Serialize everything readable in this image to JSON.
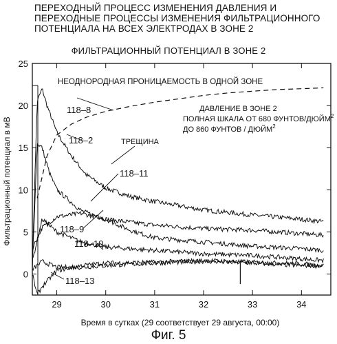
{
  "header": {
    "lines": [
      "ПЕРЕХОДНЫЙ ПРОЦЕСС ИЗМЕНЕНИЯ ДАВЛЕНИЯ И",
      "ПЕРЕХОДНЫЕ ПРОЦЕССЫ ИЗМЕНЕНИЯ ФИЛЬТРАЦИОННОГО",
      "ПОТЕНЦИАЛА НА ВСЕХ ЭЛЕКТРОДАХ В ЗОНЕ 2"
    ]
  },
  "figure_caption": "Фиг. 5",
  "chart_data": {
    "type": "line",
    "title": "ФИЛЬТРАЦИОННЫЙ ПОТЕНЦИАЛ  В ЗОНЕ 2",
    "xlabel": "Время в сутках (29 соответствует 29 августа, 00:00)",
    "ylabel": "Фильтрационный потенциал в мВ",
    "xlim": [
      28.5,
      34.6
    ],
    "ylim": [
      -2.5,
      25
    ],
    "x_ticks": [
      29,
      30,
      31,
      32,
      33,
      34
    ],
    "y_ticks": [
      0,
      5,
      10,
      15,
      20,
      25
    ],
    "grid": false,
    "annotations": {
      "heterogeneity": "НЕОДНОРОДНАЯ ПРОНИЦАЕМОСТЬ В ОДНОЙ ЗОНЕ",
      "pressure_line1": "ДАВЛЕНИЕ В ЗОНЕ 2",
      "pressure_line2": "ПОЛНАЯ ШКАЛА ОТ 680 ФУНТОВ/ДЮЙМ",
      "pressure_line3": "ДО 860 ФУНТОВ / ДЮЙМ",
      "superscript": "2",
      "fracture": "ТРЕЩИНА"
    },
    "series": [
      {
        "name": "118–8",
        "x": [
          28.5,
          28.55,
          28.6,
          28.7,
          28.8,
          29.0,
          29.3,
          29.6,
          30.0,
          30.5,
          31.0,
          31.5,
          32.0,
          33.0,
          34.0,
          34.45
        ],
        "y": [
          0.5,
          11,
          20.5,
          22,
          20,
          16.8,
          14,
          11.8,
          10.2,
          9.2,
          8.6,
          8.1,
          7.6,
          7.0,
          6.5,
          6.2
        ]
      },
      {
        "name": "118–2",
        "x": [
          28.5,
          28.6,
          28.7,
          28.85,
          29.0,
          29.5,
          30.0,
          31.0,
          32.0,
          33.0,
          34.0,
          34.45
        ],
        "y": [
          1,
          15.5,
          15,
          12,
          10,
          7.5,
          6.5,
          5.8,
          5.4,
          5.2,
          4.8,
          4.6
        ]
      },
      {
        "name": "118–11",
        "x": [
          28.5,
          28.7,
          29.0,
          29.5,
          30.0,
          30.5,
          31.0,
          32.0,
          33.0,
          34.0,
          34.45
        ],
        "y": [
          3.0,
          5.5,
          6.8,
          7.2,
          6.5,
          5.2,
          4.3,
          3.8,
          3.3,
          3.0,
          2.8
        ]
      },
      {
        "name": "118–9",
        "x": [
          28.5,
          28.7,
          29.0,
          29.5,
          30.0,
          31.0,
          32.0,
          33.0,
          34.0,
          34.45
        ],
        "y": [
          1.5,
          6.5,
          5.0,
          3.8,
          3.2,
          2.8,
          2.4,
          2.2,
          1.8,
          1.6
        ]
      },
      {
        "name": "118–10",
        "x": [
          28.5,
          28.7,
          29.0,
          29.5,
          30.0,
          31.0,
          32.0,
          33.0,
          34.0,
          34.45
        ],
        "y": [
          0.5,
          1.5,
          0.8,
          0.8,
          1.0,
          1.3,
          1.5,
          1.3,
          1.0,
          1.0
        ]
      },
      {
        "name": "118–13",
        "x": [
          28.5,
          28.6,
          28.7,
          29.0,
          29.5,
          30.0,
          31.0,
          32.0,
          33.0,
          34.0,
          34.45
        ],
        "y": [
          0,
          -2.5,
          -1.5,
          0.4,
          1.0,
          1.3,
          1.4,
          1.6,
          1.4,
          1.2,
          1.0
        ]
      },
      {
        "name": "ДАВЛЕНИЕ В ЗОНЕ 2",
        "style": "dashed",
        "x": [
          28.6,
          28.8,
          29.0,
          29.3,
          29.6,
          30.0,
          30.5,
          31.0,
          31.5,
          32.0,
          32.5,
          33.0,
          33.5,
          34.0,
          34.45
        ],
        "y": [
          9,
          14,
          16.5,
          17.8,
          18.6,
          19.3,
          19.9,
          20.4,
          20.8,
          21.2,
          21.5,
          21.7,
          21.9,
          22.0,
          22.1
        ]
      }
    ]
  }
}
